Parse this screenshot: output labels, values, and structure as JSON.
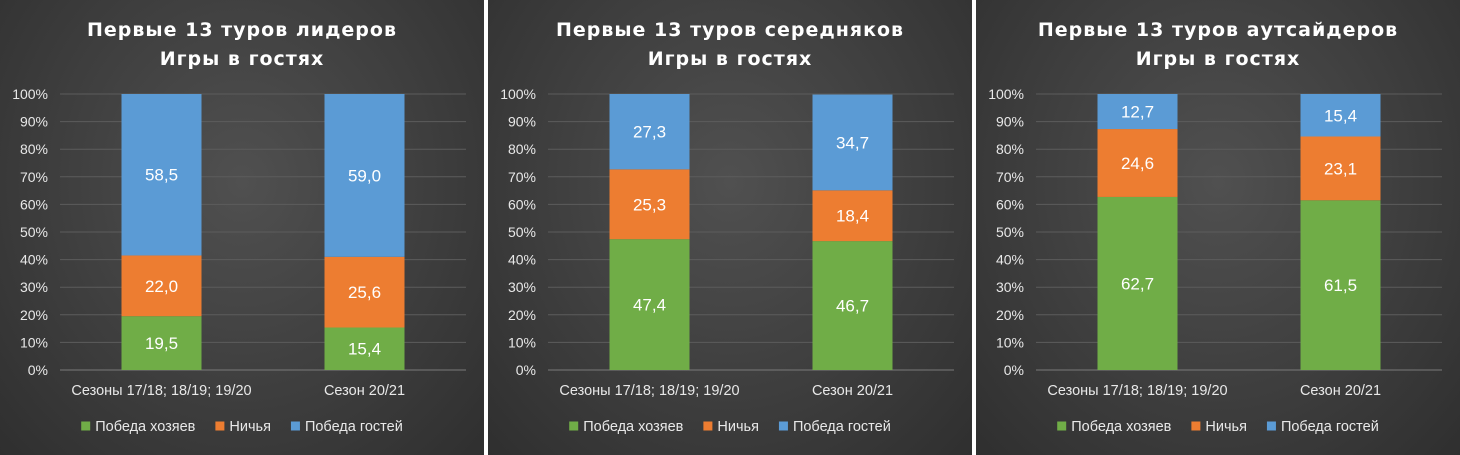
{
  "colors": {
    "home": "#70ad47",
    "draw": "#ed7d31",
    "away": "#5b9bd5"
  },
  "chart_data": [
    {
      "type": "bar",
      "stacked": true,
      "title": "Первые 13 туров лидеров",
      "subtitle": "Игры в гостях",
      "categories": [
        "Сезоны 17/18; 18/19; 19/20",
        "Сезон 20/21"
      ],
      "series": [
        {
          "name": "Победа хозяев",
          "values": [
            19.5,
            15.4
          ],
          "labels": [
            "19,5",
            "15,4"
          ]
        },
        {
          "name": "Ничья",
          "values": [
            22.0,
            25.6
          ],
          "labels": [
            "22,0",
            "25,6"
          ]
        },
        {
          "name": "Победа гостей",
          "values": [
            58.5,
            59.0
          ],
          "labels": [
            "58,5",
            "59,0"
          ]
        }
      ],
      "y_ticks": [
        "0%",
        "10%",
        "20%",
        "30%",
        "40%",
        "50%",
        "60%",
        "70%",
        "80%",
        "90%",
        "100%"
      ],
      "ylim": [
        0,
        100
      ],
      "grid": true,
      "legend": "bottom"
    },
    {
      "type": "bar",
      "stacked": true,
      "title": "Первые 13 туров середняков",
      "subtitle": "Игры в гостях",
      "categories": [
        "Сезоны 17/18; 18/19; 19/20",
        "Сезон 20/21"
      ],
      "series": [
        {
          "name": "Победа хозяев",
          "values": [
            47.4,
            46.7
          ],
          "labels": [
            "47,4",
            "46,7"
          ]
        },
        {
          "name": "Ничья",
          "values": [
            25.3,
            18.4
          ],
          "labels": [
            "25,3",
            "18,4"
          ]
        },
        {
          "name": "Победа гостей",
          "values": [
            27.3,
            34.7
          ],
          "labels": [
            "27,3",
            "34,7"
          ]
        }
      ],
      "y_ticks": [
        "0%",
        "10%",
        "20%",
        "30%",
        "40%",
        "50%",
        "60%",
        "70%",
        "80%",
        "90%",
        "100%"
      ],
      "ylim": [
        0,
        100
      ],
      "grid": true,
      "legend": "bottom"
    },
    {
      "type": "bar",
      "stacked": true,
      "title": "Первые 13 туров аутсайдеров",
      "subtitle": "Игры в гостях",
      "categories": [
        "Сезоны 17/18; 18/19; 19/20",
        "Сезон 20/21"
      ],
      "series": [
        {
          "name": "Победа хозяев",
          "values": [
            62.7,
            61.5
          ],
          "labels": [
            "62,7",
            "61,5"
          ]
        },
        {
          "name": "Ничья",
          "values": [
            24.6,
            23.1
          ],
          "labels": [
            "24,6",
            "23,1"
          ]
        },
        {
          "name": "Победа гостей",
          "values": [
            12.7,
            15.4
          ],
          "labels": [
            "12,7",
            "15,4"
          ]
        }
      ],
      "y_ticks": [
        "0%",
        "10%",
        "20%",
        "30%",
        "40%",
        "50%",
        "60%",
        "70%",
        "80%",
        "90%",
        "100%"
      ],
      "ylim": [
        0,
        100
      ],
      "grid": true,
      "legend": "bottom"
    }
  ]
}
